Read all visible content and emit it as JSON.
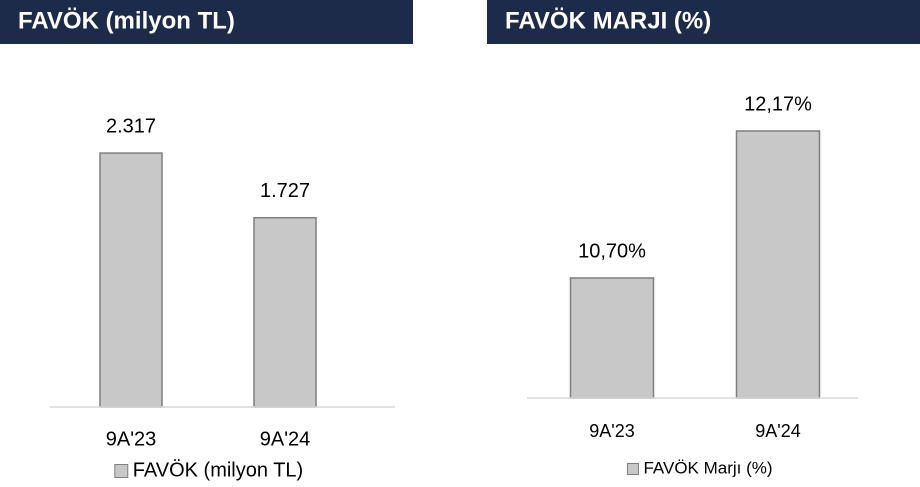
{
  "chart_data": [
    {
      "type": "bar",
      "title": "FAVÖK (milyon TL)",
      "categories": [
        "9A'23",
        "9A'24"
      ],
      "series": [
        {
          "name": "FAVÖK (milyon TL)",
          "color": "#c8c8c8",
          "values": [
            2317,
            1727
          ],
          "value_labels": [
            "2.317",
            "1.727"
          ]
        }
      ],
      "ylim": [
        0,
        2500
      ]
    },
    {
      "type": "bar",
      "title": "FAVÖK MARJI (%)",
      "categories": [
        "9A'23",
        "9A'24"
      ],
      "series": [
        {
          "name": "FAVÖK Marjı (%)",
          "color": "#c8c8c8",
          "values": [
            10.7,
            12.17
          ],
          "value_labels": [
            "10,70%",
            "12,17%"
          ]
        }
      ],
      "ylim": [
        9.5,
        13
      ]
    }
  ]
}
